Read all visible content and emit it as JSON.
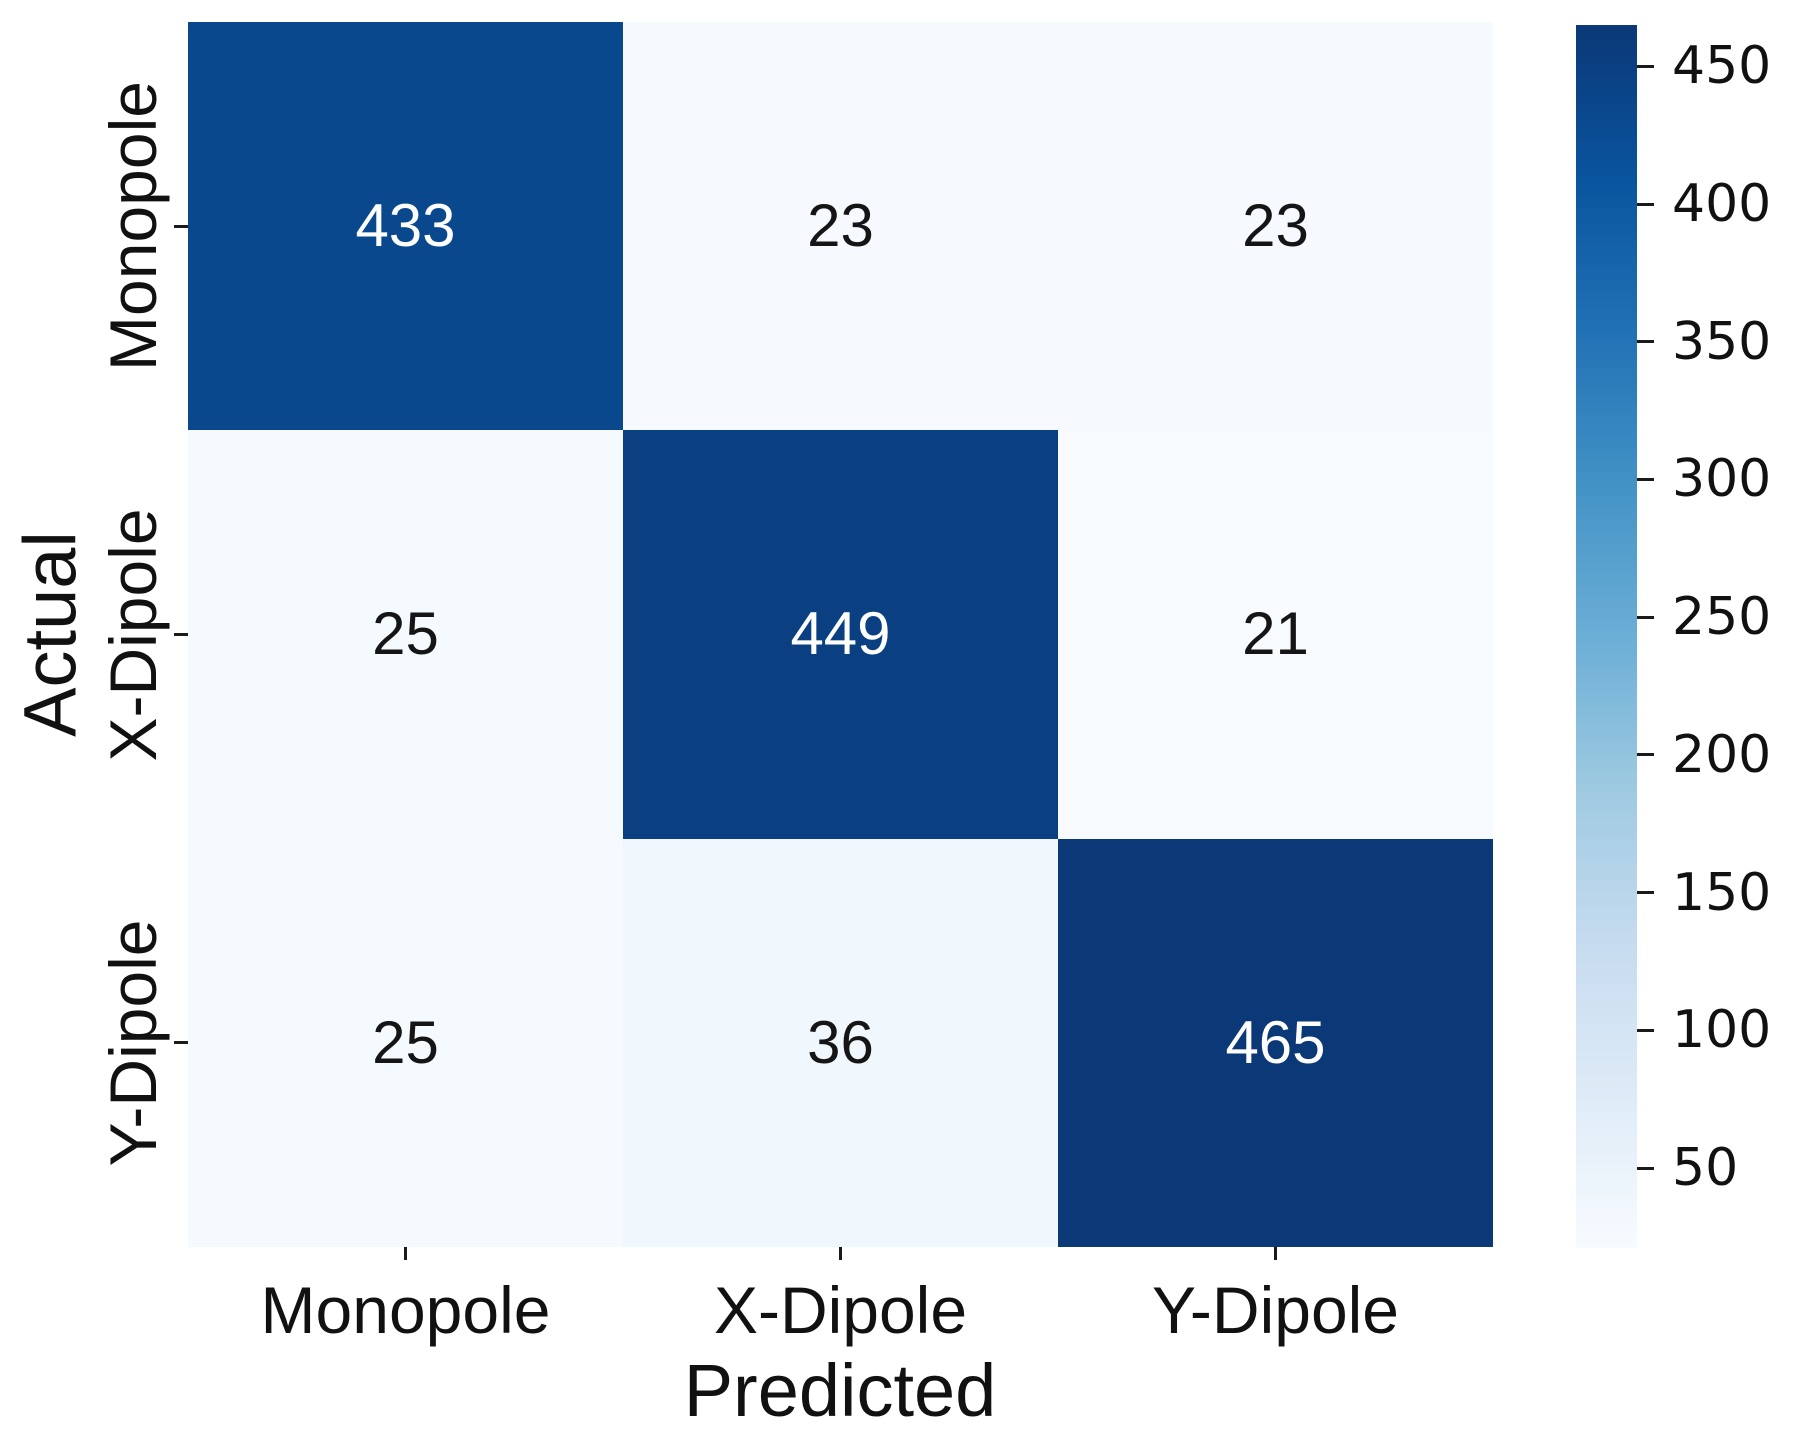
{
  "chart_data": {
    "type": "heatmap",
    "title": "",
    "xlabel": "Predicted",
    "ylabel": "Actual",
    "x_categories": [
      "Monopole",
      "X-Dipole",
      "Y-Dipole"
    ],
    "y_categories": [
      "Monopole",
      "X-Dipole",
      "Y-Dipole"
    ],
    "series": [
      {
        "name": "Monopole",
        "values": [
          433,
          23,
          23
        ]
      },
      {
        "name": "X-Dipole",
        "values": [
          25,
          449,
          21
        ]
      },
      {
        "name": "Y-Dipole",
        "values": [
          25,
          36,
          465
        ]
      }
    ],
    "vmin": 21,
    "vmax": 465,
    "colormap": "Blues",
    "grid": false,
    "legend": false,
    "colorbar": {
      "position": "right",
      "ticks": [
        450,
        400,
        350,
        300,
        250,
        200,
        150,
        100,
        50
      ]
    },
    "colors": {
      "diagonal_dark": "#0d4584",
      "off_diagonal_light": "#f2f7fd",
      "annotation_on_dark": "#ffffff",
      "annotation_on_light": "#151515",
      "tick_color": "#1a1a1a"
    }
  }
}
